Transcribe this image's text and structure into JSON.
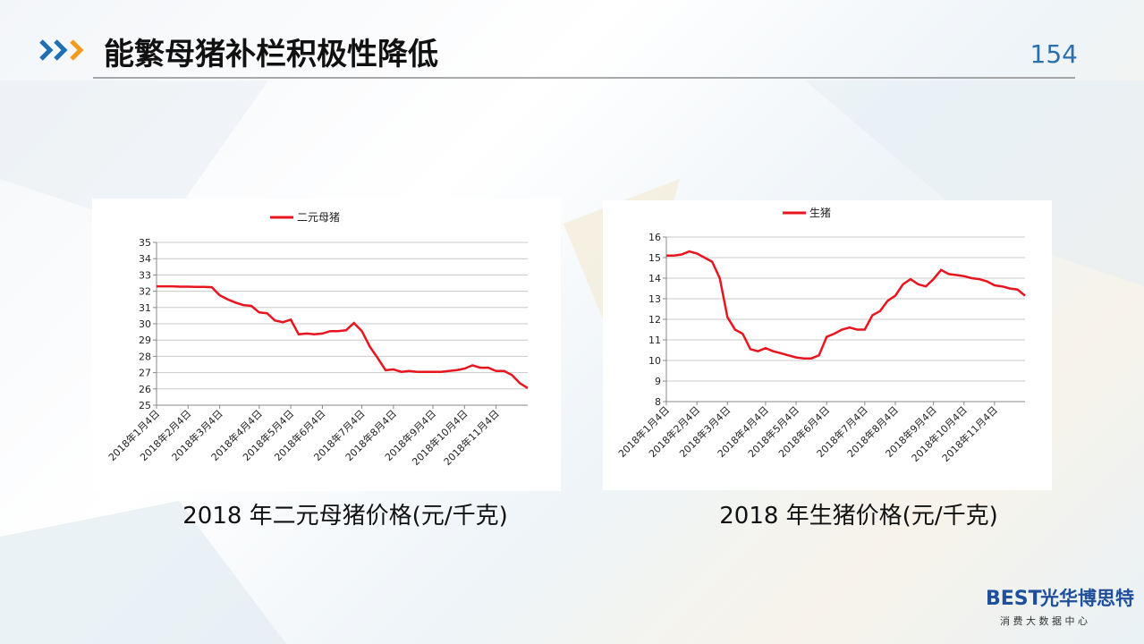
{
  "slide": {
    "title": "能繁母猪补栏积极性降低",
    "page": "154",
    "logo_brand": "BEST",
    "logo": "光华博思特",
    "logo_sub": "消 费 大 数 据 中 心"
  },
  "chart_data": [
    {
      "type": "line",
      "caption": "2018 年二元母猪价格(元/千克)",
      "categories": [
        "2018年1月4日",
        null,
        null,
        null,
        "2018年2月4日",
        null,
        null,
        null,
        "2018年3月4日",
        null,
        null,
        null,
        null,
        "2018年4月4日",
        null,
        null,
        null,
        "2018年5月4日",
        null,
        null,
        null,
        "2018年6月4日",
        null,
        null,
        null,
        null,
        "2018年7月4日",
        null,
        null,
        null,
        "2018年8月4日",
        null,
        null,
        null,
        null,
        "2018年9月4日",
        null,
        null,
        null,
        "2018年10月4日",
        null,
        null,
        null,
        "2018年11月4日",
        null,
        null,
        null,
        null
      ],
      "series": [
        {
          "name": "二元母猪",
          "color": "#e8141e",
          "values": [
            32.3,
            32.3,
            32.3,
            32.28,
            32.28,
            32.27,
            32.27,
            32.25,
            31.75,
            31.5,
            31.3,
            31.15,
            31.1,
            30.7,
            30.65,
            30.2,
            30.1,
            30.25,
            29.35,
            29.4,
            29.35,
            29.4,
            29.55,
            29.55,
            29.6,
            30.05,
            29.55,
            28.6,
            27.9,
            27.15,
            27.2,
            27.05,
            27.1,
            27.05,
            27.05,
            27.05,
            27.05,
            27.1,
            27.15,
            27.25,
            27.45,
            27.3,
            27.3,
            27.1,
            27.1,
            26.85,
            26.35,
            26.05
          ]
        }
      ],
      "ylim": [
        25,
        35
      ],
      "yticks": [
        25,
        26,
        27,
        28,
        29,
        30,
        31,
        32,
        33,
        34,
        35
      ],
      "grid": true,
      "legend": "top"
    },
    {
      "type": "line",
      "caption": "2018 年生猪价格(元/千克)",
      "categories": [
        "2018年1月4日",
        null,
        null,
        null,
        "2018年2月4日",
        null,
        null,
        null,
        "2018年3月4日",
        null,
        null,
        null,
        null,
        "2018年4月4日",
        null,
        null,
        null,
        "2018年5月4日",
        null,
        null,
        null,
        "2018年6月4日",
        null,
        null,
        null,
        null,
        "2018年7月4日",
        null,
        null,
        null,
        "2018年8月4日",
        null,
        null,
        null,
        null,
        "2018年9月4日",
        null,
        null,
        null,
        "2018年10月4日",
        null,
        null,
        null,
        "2018年11月4日",
        null,
        null,
        null,
        null
      ],
      "series": [
        {
          "name": "生猪",
          "color": "#e8141e",
          "values": [
            15.1,
            15.1,
            15.15,
            15.3,
            15.2,
            15.0,
            14.8,
            14.0,
            12.1,
            11.5,
            11.3,
            10.55,
            10.45,
            10.6,
            10.45,
            10.35,
            10.25,
            10.15,
            10.1,
            10.1,
            10.25,
            11.15,
            11.3,
            11.5,
            11.6,
            11.5,
            11.5,
            12.2,
            12.4,
            12.9,
            13.15,
            13.7,
            13.95,
            13.7,
            13.6,
            13.95,
            14.4,
            14.2,
            14.15,
            14.1,
            14.0,
            13.95,
            13.85,
            13.65,
            13.6,
            13.5,
            13.45,
            13.15
          ]
        }
      ],
      "ylim": [
        8,
        16
      ],
      "yticks": [
        8,
        9,
        10,
        11,
        12,
        13,
        14,
        15,
        16
      ],
      "grid": true,
      "legend": "top"
    }
  ]
}
